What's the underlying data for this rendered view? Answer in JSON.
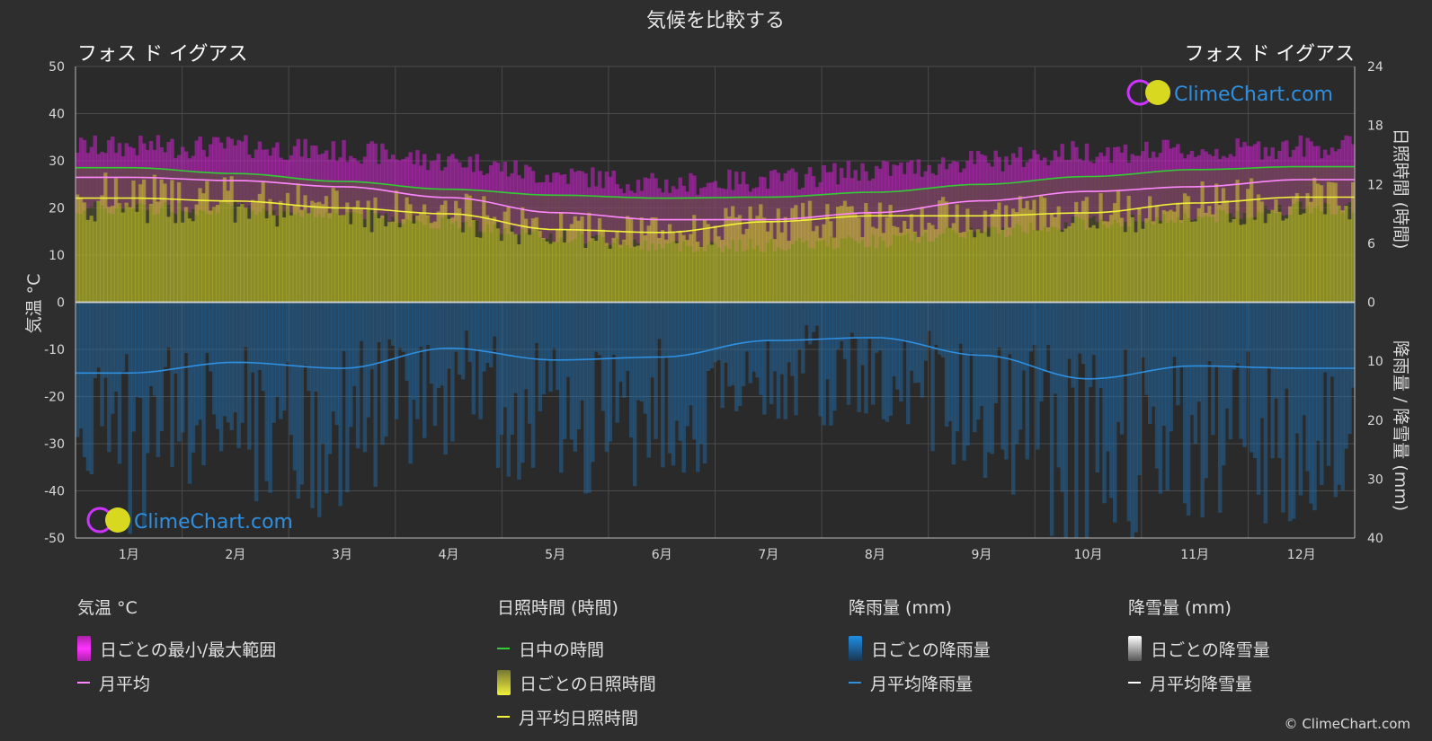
{
  "title": "気候を比較する",
  "location_left": "フォス ド イグアス",
  "location_right": "フォス ド イグアス",
  "axis_left_label": "気温 °C",
  "axis_right_top_label": "日照時間 (時間)",
  "axis_right_bottom_label": "降雨量 / 降雪量 (mm)",
  "brand": "ClimeChart.com",
  "copyright": "© ClimeChart.com",
  "colors": {
    "background": "#2e2e2e",
    "temp_range": "#cc22cc",
    "temp_avg": "#ff88ff",
    "daylight": "#33cc33",
    "sunshine": "#b5b52a",
    "sunshine_avg": "#f2f23a",
    "rain": "#1e6fb0",
    "rain_avg": "#2f8fe0",
    "snow_avg": "#ffffff",
    "brand": "#2f8fe0"
  },
  "legend": {
    "temp": {
      "header": "気温 °C",
      "range": "日ごとの最小/最大範囲",
      "avg": "月平均"
    },
    "sun": {
      "header": "日照時間 (時間)",
      "daylight": "日中の時間",
      "daily": "日ごとの日照時間",
      "avg": "月平均日照時間"
    },
    "rain": {
      "header": "降雨量 (mm)",
      "daily": "日ごとの降雨量",
      "avg": "月平均降雨量"
    },
    "snow": {
      "header": "降雪量 (mm)",
      "daily": "日ごとの降雪量",
      "avg": "月平均降雪量"
    }
  },
  "chart_data": {
    "type": "area",
    "title": "気候を比較する",
    "categories": [
      "1月",
      "2月",
      "3月",
      "4月",
      "5月",
      "6月",
      "7月",
      "8月",
      "9月",
      "10月",
      "11月",
      "12月"
    ],
    "y_left": {
      "label": "気温 °C",
      "range": [
        -50,
        50
      ],
      "ticks": [
        50,
        40,
        30,
        20,
        10,
        0,
        -10,
        -20,
        -30,
        -40,
        -50
      ]
    },
    "y_right_top": {
      "label": "日照時間 (時間)",
      "range": [
        0,
        24
      ],
      "ticks": [
        24,
        18,
        12,
        6,
        0
      ]
    },
    "y_right_bottom": {
      "label": "降雨量 / 降雪量 (mm)",
      "range": [
        0,
        40
      ],
      "ticks": [
        0,
        10,
        20,
        30,
        40
      ]
    },
    "grid": true,
    "series": [
      {
        "name": "日中の時間",
        "axis": "sunshine_hours",
        "values": [
          13.7,
          13.1,
          12.3,
          11.5,
          10.9,
          10.6,
          10.7,
          11.2,
          12.0,
          12.8,
          13.5,
          13.8
        ]
      },
      {
        "name": "月平均日照時間",
        "axis": "sunshine_hours",
        "values": [
          10.6,
          10.3,
          9.6,
          9.0,
          7.4,
          7.1,
          8.2,
          8.8,
          8.8,
          9.1,
          10.1,
          10.7
        ]
      },
      {
        "name": "月平均",
        "axis": "temperature_c",
        "values": [
          26.5,
          25.8,
          24.5,
          22.2,
          19.0,
          17.5,
          17.5,
          19.0,
          21.5,
          23.5,
          24.5,
          26.0
        ]
      },
      {
        "name": "月平均降雨量",
        "axis": "precipitation_mm",
        "values": [
          12.0,
          10.2,
          11.2,
          7.8,
          9.8,
          9.3,
          6.5,
          6.0,
          9.0,
          13.0,
          10.8,
          11.2
        ]
      },
      {
        "name": "月平均降雪量",
        "axis": "precipitation_mm",
        "values": [
          0,
          0,
          0,
          0,
          0,
          0,
          0,
          0,
          0,
          0,
          0,
          0
        ]
      },
      {
        "name": "日ごとの最小/最大範囲",
        "axis": "temperature_c",
        "min": [
          20,
          20,
          19,
          17,
          14,
          12,
          12,
          13,
          15,
          17,
          18,
          20
        ],
        "max": [
          32,
          32,
          31,
          29,
          26,
          24,
          25,
          27,
          29,
          31,
          31,
          32
        ]
      }
    ]
  }
}
